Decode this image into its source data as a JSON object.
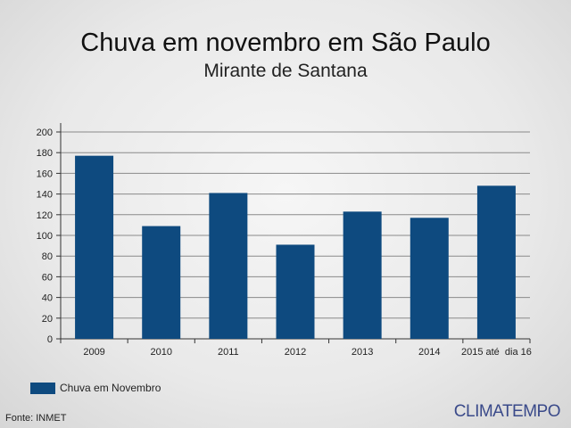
{
  "chart_data": {
    "type": "bar",
    "title": "Chuva em novembro em São Paulo",
    "subtitle": "Mirante de Santana",
    "categories": [
      "2009",
      "2010",
      "2011",
      "2012",
      "2013",
      "2014",
      "2015 até  dia 16"
    ],
    "series": [
      {
        "name": "Chuva em Novembro",
        "values": [
          177,
          109,
          141,
          91,
          123,
          117,
          148
        ],
        "color": "#0e4a7f"
      }
    ],
    "xlabel": "",
    "ylabel": "",
    "ylim": [
      0,
      200
    ],
    "yticks": [
      0,
      20,
      40,
      60,
      80,
      100,
      120,
      140,
      160,
      180,
      200
    ],
    "grid": true,
    "legend_position": "bottom-left"
  },
  "source": "Fonte: INMET",
  "brand": "CLIMATEMPO"
}
